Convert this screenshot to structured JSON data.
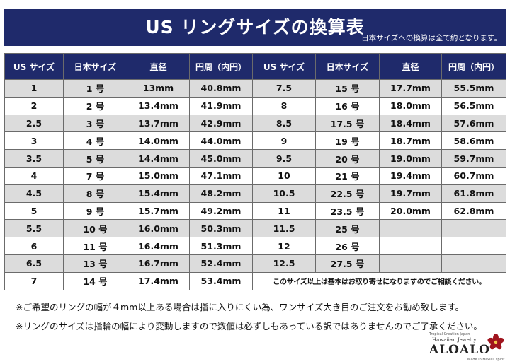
{
  "title": "US リングサイズの換算表",
  "subtitle_note": "日本サイズへの換算は全て約となります。",
  "headers": [
    "US サイズ",
    "日本サイズ",
    "直径",
    "円周（内円）",
    "US サイズ",
    "日本サイズ",
    "直径",
    "円周（内円）"
  ],
  "rows": [
    [
      "1",
      "1 号",
      "13mm",
      "40.8mm",
      "7.5",
      "15 号",
      "17.7mm",
      "55.5mm"
    ],
    [
      "2",
      "2 号",
      "13.4mm",
      "41.9mm",
      "8",
      "16 号",
      "18.0mm",
      "56.5mm"
    ],
    [
      "2.5",
      "3 号",
      "13.7mm",
      "42.9mm",
      "8.5",
      "17.5 号",
      "18.4mm",
      "57.6mm"
    ],
    [
      "3",
      "4 号",
      "14.0mm",
      "44.0mm",
      "9",
      "19 号",
      "18.7mm",
      "58.6mm"
    ],
    [
      "3.5",
      "5 号",
      "14.4mm",
      "45.0mm",
      "9.5",
      "20 号",
      "19.0mm",
      "59.7mm"
    ],
    [
      "4",
      "7 号",
      "15.0mm",
      "47.1mm",
      "10",
      "21 号",
      "19.4mm",
      "60.7mm"
    ],
    [
      "4.5",
      "8 号",
      "15.4mm",
      "48.2mm",
      "10.5",
      "22.5 号",
      "19.7mm",
      "61.8mm"
    ],
    [
      "5",
      "9 号",
      "15.7mm",
      "49.2mm",
      "11",
      "23.5 号",
      "20.0mm",
      "62.8mm"
    ],
    [
      "5.5",
      "10 号",
      "16.0mm",
      "50.3mm",
      "11.5",
      "25 号",
      "",
      ""
    ],
    [
      "6",
      "11 号",
      "16.4mm",
      "51.3mm",
      "12",
      "26 号",
      "",
      ""
    ],
    [
      "6.5",
      "13 号",
      "16.7mm",
      "52.4mm",
      "12.5",
      "27.5 号",
      "",
      ""
    ],
    [
      "7",
      "14 号",
      "17.4mm",
      "53.4mm"
    ]
  ],
  "last_row_notice": "このサイズ以上は基本はお取り寄せになりますのでご相談ください。",
  "footnotes": [
    "※ご希望のリングの幅が４mm以上ある場合は指に入りにくい為、ワンサイズ大き目のご注文をお勧め致します。",
    "※リングのサイズは指輪の幅により変動しますので数値は必ずしもあっている訳ではありませんのでご了承ください。"
  ],
  "logo": {
    "small_text": "Tropical Creation Japan",
    "sub_text": "Hawaiian Jewelry",
    "main_text": "ALOALO",
    "tag_text": "Made in Hawaii spirit",
    "flower_color": "#a0141e"
  },
  "colors": {
    "header_bg": "#1f2a6b",
    "stripe": "#dcdcdc"
  }
}
